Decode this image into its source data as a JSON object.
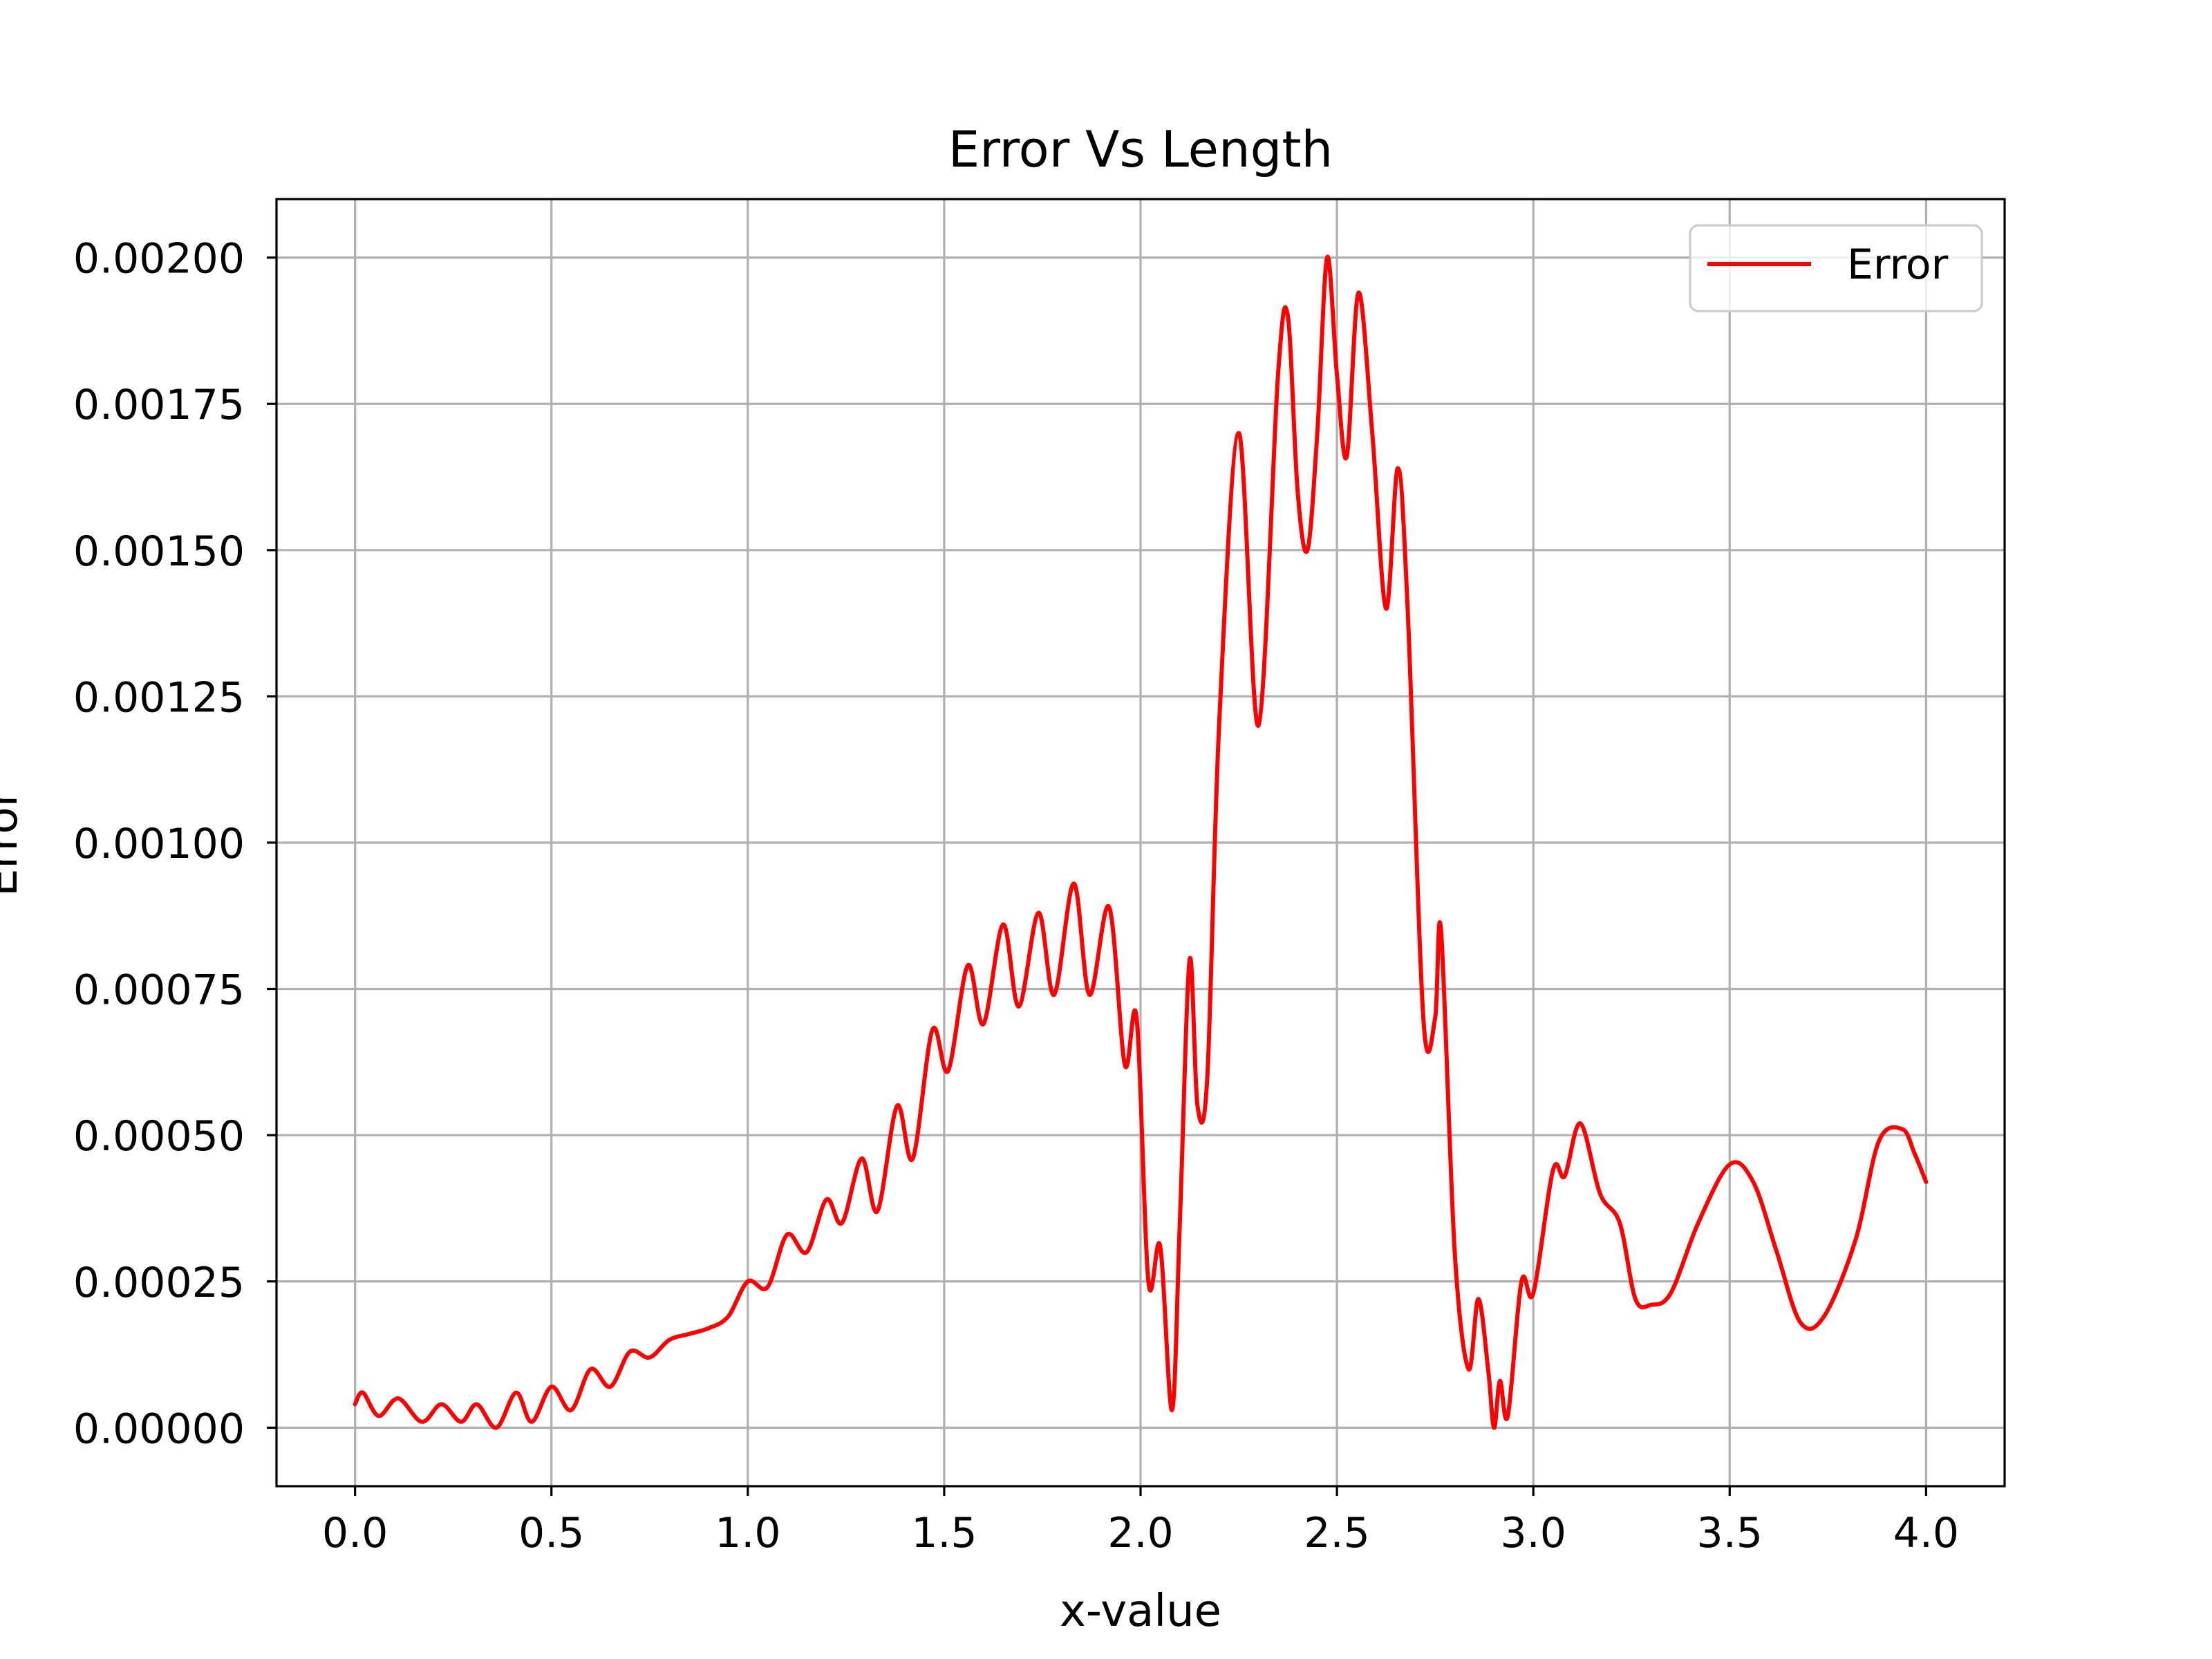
{
  "chart_data": {
    "type": "line",
    "title": "Error Vs Length",
    "xlabel": "x-value",
    "ylabel": "Error",
    "xlim": [
      -0.2,
      4.2
    ],
    "ylim": [
      -0.0001,
      0.0021
    ],
    "x_ticks": [
      {
        "value": 0.0,
        "label": "0.0"
      },
      {
        "value": 0.5,
        "label": "0.5"
      },
      {
        "value": 1.0,
        "label": "1.0"
      },
      {
        "value": 1.5,
        "label": "1.5"
      },
      {
        "value": 2.0,
        "label": "2.0"
      },
      {
        "value": 2.5,
        "label": "2.5"
      },
      {
        "value": 3.0,
        "label": "3.0"
      },
      {
        "value": 3.5,
        "label": "3.5"
      },
      {
        "value": 4.0,
        "label": "4.0"
      }
    ],
    "y_ticks": [
      {
        "value": 0.0,
        "label": "0.00000"
      },
      {
        "value": 0.00025,
        "label": "0.00025"
      },
      {
        "value": 0.0005,
        "label": "0.00050"
      },
      {
        "value": 0.00075,
        "label": "0.00075"
      },
      {
        "value": 0.001,
        "label": "0.00100"
      },
      {
        "value": 0.00125,
        "label": "0.00125"
      },
      {
        "value": 0.0015,
        "label": "0.00150"
      },
      {
        "value": 0.00175,
        "label": "0.00175"
      },
      {
        "value": 0.002,
        "label": "0.00200"
      }
    ],
    "grid": true,
    "legend": {
      "position": "top-right",
      "entries": [
        "Error"
      ]
    },
    "series": [
      {
        "name": "Error",
        "color": "#ff0000",
        "x": [
          0.0,
          0.02,
          0.06,
          0.11,
          0.17,
          0.22,
          0.27,
          0.31,
          0.36,
          0.41,
          0.45,
          0.5,
          0.55,
          0.6,
          0.65,
          0.7,
          0.75,
          0.8,
          0.85,
          0.9,
          0.95,
          1.0,
          1.05,
          1.1,
          1.15,
          1.2,
          1.24,
          1.29,
          1.33,
          1.38,
          1.42,
          1.47,
          1.51,
          1.56,
          1.6,
          1.65,
          1.69,
          1.74,
          1.78,
          1.83,
          1.87,
          1.92,
          1.96,
          1.99,
          2.02,
          2.05,
          2.08,
          2.1,
          2.125,
          2.145,
          2.17,
          2.2,
          2.25,
          2.3,
          2.35,
          2.375,
          2.4,
          2.425,
          2.45,
          2.475,
          2.5,
          2.525,
          2.555,
          2.59,
          2.625,
          2.655,
          2.68,
          2.72,
          2.75,
          2.765,
          2.8,
          2.835,
          2.86,
          2.885,
          2.9,
          2.915,
          2.935,
          2.97,
          3.0,
          3.05,
          3.08,
          3.12,
          3.17,
          3.22,
          3.26,
          3.3,
          3.35,
          3.42,
          3.5,
          3.56,
          3.62,
          3.68,
          3.74,
          3.82,
          3.88,
          3.94,
          3.97,
          4.0
        ],
        "y": [
          4e-05,
          6e-05,
          2e-05,
          5e-05,
          1e-05,
          4e-05,
          1e-05,
          4e-05,
          0.0,
          6e-05,
          1e-05,
          7e-05,
          3e-05,
          0.0001,
          7e-05,
          0.00013,
          0.00012,
          0.00015,
          0.00016,
          0.00017,
          0.00019,
          0.00025,
          0.00024,
          0.00033,
          0.0003,
          0.00039,
          0.00035,
          0.00046,
          0.00037,
          0.00055,
          0.00046,
          0.00068,
          0.00061,
          0.00079,
          0.00069,
          0.00086,
          0.00072,
          0.00088,
          0.00074,
          0.00093,
          0.00074,
          0.00089,
          0.00062,
          0.0007,
          0.00025,
          0.00031,
          3e-05,
          0.00035,
          0.0008,
          0.00055,
          0.0006,
          0.0012,
          0.0017,
          0.0012,
          0.0018,
          0.0019,
          0.0016,
          0.0015,
          0.0017,
          0.002,
          0.0018,
          0.00166,
          0.00194,
          0.0017,
          0.0014,
          0.00164,
          0.0014,
          0.0007,
          0.0007,
          0.00085,
          0.0003,
          0.0001,
          0.00022,
          0.0001,
          0.0,
          8e-05,
          2e-05,
          0.00025,
          0.00023,
          0.00044,
          0.00043,
          0.00052,
          0.0004,
          0.00035,
          0.00022,
          0.00021,
          0.00023,
          0.00035,
          0.00045,
          0.00042,
          0.0003,
          0.00018,
          0.00019,
          0.00032,
          0.00049,
          0.00051,
          0.00047,
          0.00042
        ]
      }
    ]
  }
}
